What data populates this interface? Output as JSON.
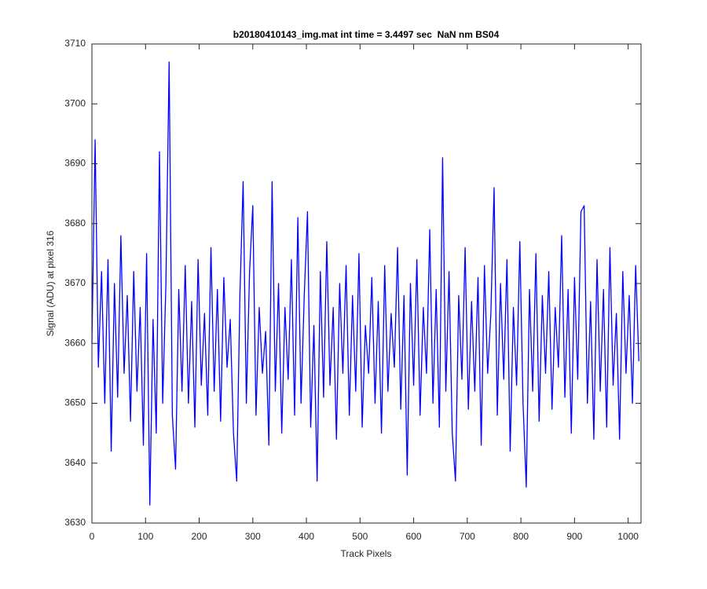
{
  "chart_data": {
    "type": "line",
    "title": "b20180410143_img.mat int time = 3.4497 sec  NaN nm BS04",
    "xlabel": "Track Pixels",
    "ylabel": "Signal (ADU) at pixel 316",
    "x": [
      0,
      6,
      12,
      18,
      24,
      30,
      36,
      42,
      48,
      54,
      60,
      66,
      72,
      78,
      84,
      90,
      96,
      102,
      108,
      114,
      120,
      126,
      132,
      138,
      144,
      150,
      156,
      162,
      168,
      174,
      180,
      186,
      192,
      198,
      204,
      210,
      216,
      222,
      228,
      234,
      240,
      246,
      252,
      258,
      264,
      270,
      276,
      282,
      288,
      294,
      300,
      306,
      312,
      318,
      324,
      330,
      336,
      342,
      348,
      354,
      360,
      366,
      372,
      378,
      384,
      390,
      396,
      402,
      408,
      414,
      420,
      426,
      432,
      438,
      444,
      450,
      456,
      462,
      468,
      474,
      480,
      486,
      492,
      498,
      504,
      510,
      516,
      522,
      528,
      534,
      540,
      546,
      552,
      558,
      564,
      570,
      576,
      582,
      588,
      594,
      600,
      606,
      612,
      618,
      624,
      630,
      636,
      642,
      648,
      654,
      660,
      666,
      672,
      678,
      684,
      690,
      696,
      702,
      708,
      714,
      720,
      726,
      732,
      738,
      744,
      750,
      756,
      762,
      768,
      774,
      780,
      786,
      792,
      798,
      804,
      810,
      816,
      822,
      828,
      834,
      840,
      846,
      852,
      858,
      864,
      870,
      876,
      882,
      888,
      894,
      900,
      906,
      912,
      918,
      924,
      930,
      936,
      942,
      948,
      954,
      960,
      966,
      972,
      978,
      984,
      990,
      996,
      1002,
      1008,
      1014,
      1020
    ],
    "series": [
      {
        "name": "Signal",
        "color": "#0000ff",
        "values": [
          3660,
          3694,
          3656,
          3672,
          3650,
          3674,
          3642,
          3670,
          3651,
          3678,
          3655,
          3668,
          3647,
          3672,
          3652,
          3666,
          3643,
          3675,
          3633,
          3664,
          3645,
          3692,
          3650,
          3670,
          3707,
          3648,
          3639,
          3669,
          3652,
          3673,
          3650,
          3667,
          3646,
          3674,
          3653,
          3665,
          3648,
          3676,
          3652,
          3669,
          3647,
          3671,
          3656,
          3664,
          3645,
          3637,
          3668,
          3687,
          3650,
          3672,
          3683,
          3648,
          3666,
          3655,
          3662,
          3643,
          3687,
          3652,
          3670,
          3645,
          3666,
          3654,
          3674,
          3648,
          3681,
          3650,
          3668,
          3682,
          3646,
          3663,
          3637,
          3672,
          3651,
          3677,
          3653,
          3666,
          3644,
          3670,
          3655,
          3673,
          3648,
          3668,
          3652,
          3675,
          3646,
          3663,
          3655,
          3671,
          3650,
          3667,
          3645,
          3673,
          3652,
          3665,
          3656,
          3676,
          3649,
          3668,
          3638,
          3670,
          3653,
          3674,
          3648,
          3666,
          3655,
          3679,
          3650,
          3669,
          3646,
          3691,
          3652,
          3672,
          3645,
          3637,
          3668,
          3654,
          3676,
          3649,
          3667,
          3652,
          3671,
          3643,
          3673,
          3655,
          3665,
          3686,
          3648,
          3670,
          3654,
          3674,
          3642,
          3666,
          3653,
          3677,
          3650,
          3636,
          3669,
          3652,
          3675,
          3647,
          3668,
          3655,
          3672,
          3649,
          3666,
          3656,
          3678,
          3651,
          3669,
          3645,
          3671,
          3654,
          3682,
          3683,
          3650,
          3667,
          3644,
          3674,
          3652,
          3669,
          3646,
          3676,
          3653,
          3665,
          3644,
          3672,
          3655,
          3668,
          3650,
          3673,
          3657
        ]
      }
    ],
    "xlim": [
      0,
      1024
    ],
    "xticks": [
      0,
      100,
      200,
      300,
      400,
      500,
      600,
      700,
      800,
      900,
      1000
    ],
    "ylim": [
      3630,
      3710
    ],
    "yticks": [
      3630,
      3640,
      3650,
      3660,
      3670,
      3680,
      3690,
      3700,
      3710
    ],
    "grid": false
  }
}
